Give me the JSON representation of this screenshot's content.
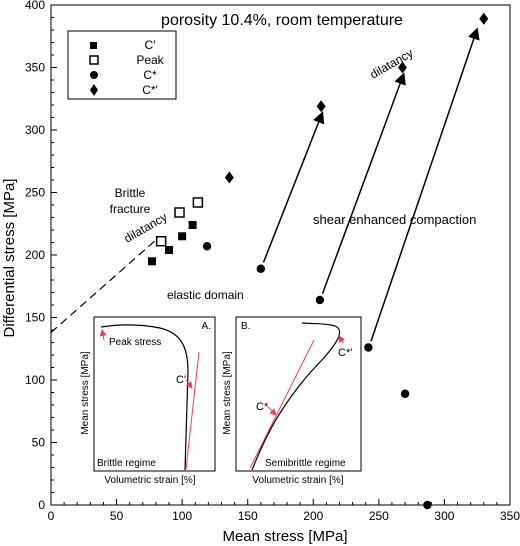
{
  "chart_data": {
    "type": "scatter",
    "title": "porosity 10.4%, room temperature",
    "xlabel": "Mean stress [MPa]",
    "ylabel": "Differential stress [MPa]",
    "xlim": [
      0,
      350
    ],
    "ylim": [
      0,
      400
    ],
    "xticks": [
      "0",
      "50",
      "100",
      "150",
      "200",
      "250",
      "300",
      "350"
    ],
    "yticks": [
      "0",
      "50",
      "100",
      "150",
      "200",
      "250",
      "300",
      "350",
      "400"
    ],
    "legend_position": "top-left",
    "series": [
      {
        "name": "C′",
        "marker": "filled-square",
        "points": [
          [
            77,
            195
          ],
          [
            90,
            204
          ],
          [
            100,
            215
          ],
          [
            108,
            224
          ]
        ]
      },
      {
        "name": "Peak",
        "marker": "open-square",
        "points": [
          [
            84,
            211
          ],
          [
            98,
            234
          ],
          [
            112,
            242
          ]
        ]
      },
      {
        "name": "C*",
        "marker": "filled-circle",
        "points": [
          [
            119,
            207
          ],
          [
            160,
            189
          ],
          [
            205,
            164
          ],
          [
            242,
            126
          ],
          [
            270,
            89
          ],
          [
            287,
            0
          ]
        ]
      },
      {
        "name": "C*′",
        "marker": "filled-diamond",
        "points": [
          [
            136,
            262
          ],
          [
            206,
            319
          ],
          [
            268,
            350
          ],
          [
            330,
            389
          ]
        ]
      }
    ],
    "arrows": [
      [
        [
          162,
          194
        ],
        [
          207,
          314
        ]
      ],
      [
        [
          207,
          169
        ],
        [
          269,
          345
        ]
      ],
      [
        [
          244,
          131
        ],
        [
          325,
          381
        ]
      ]
    ],
    "dashed_line": [
      [
        0,
        138
      ],
      [
        80,
        212
      ]
    ],
    "annotations": {
      "brittle_fracture": "Brittle\nfracture",
      "dilatancy_left": "dilatancy",
      "dilatancy_right": "dilatancy",
      "shear_enhanced_compaction": "shear enhanced compaction",
      "elastic_domain": "elastic domain"
    },
    "inset_a": {
      "panel": "A.",
      "regime": "Brittle regime",
      "xlabel": "Volumetric strain [%]",
      "ylabel": "Mean stress [MPa]",
      "peak_label": "Peak stress",
      "point_label": "C′"
    },
    "inset_b": {
      "panel": "B.",
      "regime": "Semibrittle regime",
      "xlabel": "Volumetric strain [%]",
      "ylabel": "Mean stress [MPa]",
      "c_star_label": "C*",
      "c_star_prime_label": "C*′"
    }
  },
  "colors": {
    "curve": "#000000",
    "highlight": "#e8405a",
    "axis": "#000000"
  }
}
